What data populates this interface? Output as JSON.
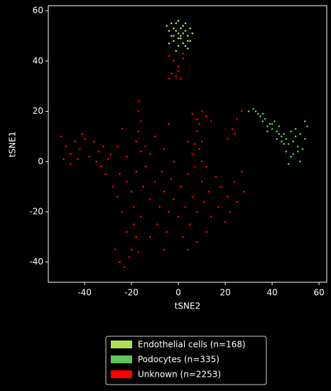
{
  "chart_data": {
    "type": "scatter",
    "xlabel": "tSNE2",
    "ylabel": "tSNE1",
    "xlim": [
      -55.5,
      63.3
    ],
    "ylim": [
      -48,
      62
    ],
    "xticks": [
      -40,
      -20,
      0,
      20,
      40,
      60
    ],
    "yticks": [
      -40,
      -20,
      0,
      20,
      40,
      60
    ],
    "legend": "lower center",
    "series": [
      {
        "name": "Endothelial cells (n=168)",
        "color": "#b0e050",
        "x": [
          -5,
          -4,
          -3,
          -2,
          -1,
          0,
          1,
          2,
          3,
          4,
          5,
          6,
          -4,
          -2,
          0,
          2,
          4,
          -3,
          -1,
          1,
          3,
          5,
          -2,
          0,
          2,
          4,
          -1,
          1,
          3,
          0
        ],
        "y": [
          54,
          52,
          50,
          53,
          55,
          51,
          49,
          54,
          52,
          50,
          48,
          51,
          47,
          48,
          46,
          47,
          45,
          55,
          44,
          53,
          55,
          53,
          50,
          49,
          51,
          48,
          52,
          50,
          46,
          56
        ]
      },
      {
        "name": "Podocytes (n=335)",
        "color": "#5fc35f",
        "x": [
          30,
          32,
          34,
          35,
          36,
          37,
          38,
          39,
          40,
          41,
          42,
          43,
          44,
          45,
          46,
          47,
          48,
          49,
          50,
          51,
          52,
          53,
          54,
          55,
          33,
          36,
          38,
          40,
          42,
          44,
          46,
          48,
          50,
          52,
          54,
          47,
          49,
          51,
          45,
          43
        ],
        "y": [
          20,
          21,
          19,
          18,
          16,
          17,
          14,
          15,
          13,
          16,
          12,
          14,
          10,
          11,
          9,
          7,
          12,
          8,
          10,
          6,
          11,
          5,
          9,
          14,
          20,
          19,
          12,
          15,
          9,
          8,
          4,
          2,
          13,
          0,
          16,
          -1,
          3,
          4,
          7,
          11
        ]
      },
      {
        "name": "Unknown (n=2253)",
        "color": "#ff0000",
        "x": [
          -4,
          -2,
          0,
          2,
          -3,
          -1,
          1,
          -4,
          0,
          2,
          -17,
          -17,
          -16,
          -17,
          -18,
          -16,
          -50,
          -48,
          -46,
          -44,
          -42,
          -40,
          -38,
          -46,
          -43,
          -41,
          -49,
          -36,
          -34,
          -32,
          -30,
          -33,
          -35,
          -31,
          -29,
          -28,
          -26,
          -25,
          -24,
          -22,
          -20,
          -19,
          -18,
          -16,
          -15,
          -14,
          -12,
          -10,
          -9,
          -8,
          -7,
          -6,
          -5,
          -4,
          -3,
          -2,
          0,
          1,
          2,
          3,
          4,
          5,
          6,
          7,
          8,
          10,
          11,
          12,
          13,
          14,
          16,
          17,
          18,
          20,
          21,
          22,
          24,
          25,
          27,
          28,
          -22,
          -20,
          -18,
          -23,
          -21,
          -25,
          -17,
          -27,
          -19,
          -12,
          -6,
          4,
          8,
          -12,
          -10,
          -6,
          -4,
          -2,
          4,
          6,
          8,
          10,
          12,
          -14,
          -22,
          -24,
          -26,
          6,
          8,
          10,
          12,
          14,
          9,
          7,
          9,
          10,
          21,
          23,
          25,
          27,
          24
        ],
        "y": [
          42,
          40,
          38,
          41,
          35,
          34,
          33,
          33,
          36,
          43,
          24,
          20,
          16,
          12,
          8,
          4,
          10,
          6,
          3,
          8,
          5,
          9,
          2,
          -1,
          1,
          11,
          1,
          8,
          4,
          6,
          1,
          -2,
          0,
          -5,
          3,
          -10,
          -14,
          -5,
          -20,
          -8,
          -12,
          -18,
          -4,
          -22,
          -10,
          -2,
          -15,
          -8,
          -25,
          -18,
          -4,
          -12,
          -28,
          -20,
          -7,
          -15,
          -22,
          -10,
          -30,
          -18,
          -5,
          -25,
          -14,
          -2,
          -20,
          -8,
          -16,
          -28,
          -12,
          -22,
          -6,
          -18,
          -10,
          -24,
          -14,
          -20,
          -8,
          -16,
          -4,
          -12,
          -28,
          -35,
          -30,
          -42,
          -38,
          -40,
          -36,
          -35,
          -25,
          -30,
          -35,
          -35,
          -32,
          3,
          10,
          5,
          15,
          0,
          8,
          3,
          12,
          0,
          -2,
          6,
          2,
          13,
          6,
          19,
          17,
          20,
          18,
          16,
          15,
          7,
          5,
          8,
          9,
          13,
          17,
          20,
          11
        ]
      }
    ]
  }
}
